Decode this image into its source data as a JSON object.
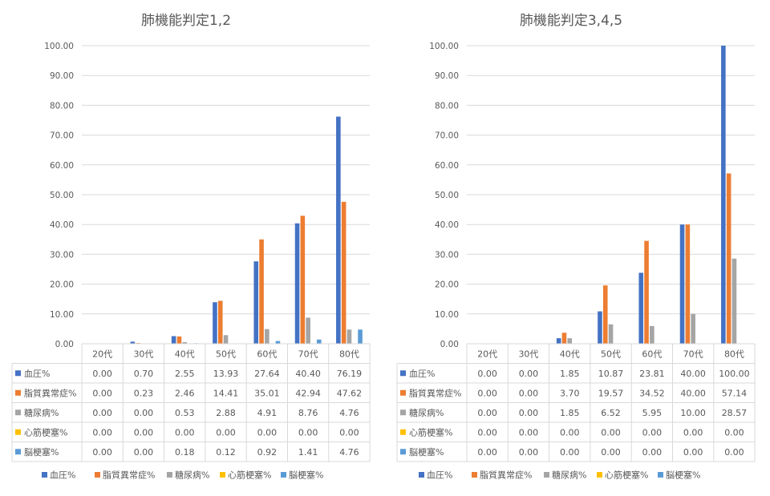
{
  "colors": {
    "blood_pressure": "#4472c4",
    "lipid": "#ed7d31",
    "diabetes": "#a5a5a5",
    "myocardial": "#ffc000",
    "cerebral": "#5b9bd5"
  },
  "chart_data": [
    {
      "type": "bar",
      "title": "肺機能判定1,2",
      "categories": [
        "20代",
        "30代",
        "40代",
        "50代",
        "60代",
        "70代",
        "80代"
      ],
      "ylim": [
        0,
        100
      ],
      "yticks": [
        "0.00",
        "10.00",
        "20.00",
        "30.00",
        "40.00",
        "50.00",
        "60.00",
        "70.00",
        "80.00",
        "90.00",
        "100.00"
      ],
      "legend_position": "bottom",
      "grid": true,
      "series": [
        {
          "name": "血圧%",
          "values": [
            0.0,
            0.7,
            2.55,
            13.93,
            27.64,
            40.4,
            76.19
          ],
          "labels": [
            "0.00",
            "0.70",
            "2.55",
            "13.93",
            "27.64",
            "40.40",
            "76.19"
          ]
        },
        {
          "name": "脂質異常症%",
          "values": [
            0.0,
            0.23,
            2.46,
            14.41,
            35.01,
            42.94,
            47.62
          ],
          "labels": [
            "0.00",
            "0.23",
            "2.46",
            "14.41",
            "35.01",
            "42.94",
            "47.62"
          ]
        },
        {
          "name": "糖尿病%",
          "values": [
            0.0,
            0.0,
            0.53,
            2.88,
            4.91,
            8.76,
            4.76
          ],
          "labels": [
            "0.00",
            "0.00",
            "0.53",
            "2.88",
            "4.91",
            "8.76",
            "4.76"
          ]
        },
        {
          "name": "心筋梗塞%",
          "values": [
            0.0,
            0.0,
            0.0,
            0.0,
            0.0,
            0.0,
            0.0
          ],
          "labels": [
            "0.00",
            "0.00",
            "0.00",
            "0.00",
            "0.00",
            "0.00",
            "0.00"
          ]
        },
        {
          "name": "脳梗塞%",
          "values": [
            0.0,
            0.0,
            0.18,
            0.12,
            0.92,
            1.41,
            4.76
          ],
          "labels": [
            "0.00",
            "0.00",
            "0.18",
            "0.12",
            "0.92",
            "1.41",
            "4.76"
          ]
        }
      ]
    },
    {
      "type": "bar",
      "title": "肺機能判定3,4,5",
      "categories": [
        "20代",
        "30代",
        "40代",
        "50代",
        "60代",
        "70代",
        "80代"
      ],
      "ylim": [
        0,
        100
      ],
      "yticks": [
        "0.00",
        "10.00",
        "20.00",
        "30.00",
        "40.00",
        "50.00",
        "60.00",
        "70.00",
        "80.00",
        "90.00",
        "100.00"
      ],
      "legend_position": "bottom",
      "grid": true,
      "series": [
        {
          "name": "血圧%",
          "values": [
            0.0,
            0.0,
            1.85,
            10.87,
            23.81,
            40.0,
            100.0
          ],
          "labels": [
            "0.00",
            "0.00",
            "1.85",
            "10.87",
            "23.81",
            "40.00",
            "100.00"
          ]
        },
        {
          "name": "脂質異常症%",
          "values": [
            0.0,
            0.0,
            3.7,
            19.57,
            34.52,
            40.0,
            57.14
          ],
          "labels": [
            "0.00",
            "0.00",
            "3.70",
            "19.57",
            "34.52",
            "40.00",
            "57.14"
          ]
        },
        {
          "name": "糖尿病%",
          "values": [
            0.0,
            0.0,
            1.85,
            6.52,
            5.95,
            10.0,
            28.57
          ],
          "labels": [
            "0.00",
            "0.00",
            "1.85",
            "6.52",
            "5.95",
            "10.00",
            "28.57"
          ]
        },
        {
          "name": "心筋梗塞%",
          "values": [
            0.0,
            0.0,
            0.0,
            0.0,
            0.0,
            0.0,
            0.0
          ],
          "labels": [
            "0.00",
            "0.00",
            "0.00",
            "0.00",
            "0.00",
            "0.00",
            "0.00"
          ]
        },
        {
          "name": "脳梗塞%",
          "values": [
            0.0,
            0.0,
            0.0,
            0.0,
            0.0,
            0.0,
            0.0
          ],
          "labels": [
            "0.00",
            "0.00",
            "0.00",
            "0.00",
            "0.00",
            "0.00",
            "0.00"
          ]
        }
      ]
    }
  ]
}
